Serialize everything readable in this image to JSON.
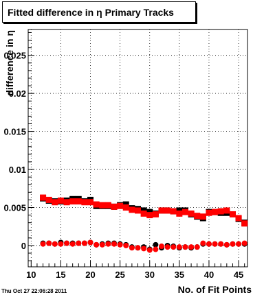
{
  "title": "Fitted difference in  η Primary Tracks",
  "timestamp": "Thu Oct 27 22:06:28 2011",
  "chart_data": {
    "type": "scatter",
    "title": "Fitted difference in  η Primary Tracks",
    "xlabel": "No. of Fit Points",
    "ylabel": "difference in η",
    "xlim": [
      9.5,
      46.5
    ],
    "ylim": [
      -0.0028,
      0.0284
    ],
    "grid": true,
    "x_ticks": [
      "10",
      "15",
      "20",
      "25",
      "30",
      "35",
      "40",
      "45"
    ],
    "x_tick_values": [
      10,
      15,
      20,
      25,
      30,
      35,
      40,
      45
    ],
    "y_ticks": [
      "0",
      "0.005",
      "0.01",
      "0.015",
      "0.02",
      "0.025"
    ],
    "y_tick_values": [
      0,
      0.005,
      0.01,
      0.015,
      0.02,
      0.025
    ],
    "x": [
      12,
      13,
      14,
      15,
      16,
      17,
      18,
      19,
      20,
      21,
      22,
      23,
      24,
      25,
      26,
      27,
      28,
      29,
      30,
      31,
      32,
      33,
      34,
      35,
      36,
      37,
      38,
      39,
      40,
      41,
      42,
      43,
      44,
      45,
      46
    ],
    "series": [
      {
        "color": "#000000",
        "marker": "square",
        "role": "mean",
        "values": [
          0.0062,
          0.0059,
          0.0058,
          0.0058,
          0.0059,
          0.0061,
          0.0061,
          0.0058,
          0.006,
          0.0052,
          0.0052,
          0.0052,
          0.0051,
          0.0053,
          0.0054,
          0.0049,
          0.0048,
          0.0046,
          0.0044,
          0.0042,
          0.0046,
          0.0046,
          0.0045,
          0.0046,
          0.0046,
          0.0041,
          0.0038,
          0.0036,
          0.0044,
          0.0044,
          0.0043,
          0.0043,
          0.0041,
          0.0035,
          0.003
        ]
      },
      {
        "color": "#000000",
        "marker": "circle",
        "role": "sigma",
        "values": [
          0.0003,
          0.0003,
          0.0002,
          0.0004,
          0.0003,
          0.0003,
          0.0003,
          0.0003,
          0.0004,
          0.0001,
          0.0002,
          0.0003,
          0.0003,
          0.0002,
          0.0001,
          -0.0002,
          -0.0003,
          -0.0002,
          -0.0005,
          0.0001,
          -0.0003,
          0.0,
          -0.0001,
          -0.0003,
          -0.0002,
          -0.0003,
          -0.0002,
          0.0002,
          0.0002,
          0.0002,
          0.0002,
          0.0001,
          0.0002,
          0.0002,
          0.0002
        ]
      },
      {
        "color": "#ff0000",
        "marker": "square",
        "role": "mean",
        "values": [
          0.0063,
          0.006,
          0.0057,
          0.0059,
          0.0057,
          0.0058,
          0.0058,
          0.0057,
          0.0057,
          0.0054,
          0.0053,
          0.0053,
          0.0051,
          0.0052,
          0.005,
          0.0047,
          0.0046,
          0.0042,
          0.004,
          0.0041,
          0.0046,
          0.0046,
          0.0045,
          0.0042,
          0.0044,
          0.0042,
          0.0039,
          0.0038,
          0.0043,
          0.0044,
          0.0045,
          0.0046,
          0.0041,
          0.0036,
          0.0029
        ]
      },
      {
        "color": "#ff0000",
        "marker": "circle",
        "role": "sigma",
        "values": [
          0.0002,
          0.0003,
          0.0002,
          0.0002,
          0.0003,
          0.0002,
          0.0003,
          0.0003,
          0.0004,
          0.0001,
          0.0001,
          0.0002,
          0.0002,
          0.0001,
          0.0,
          -0.0003,
          -0.0003,
          -0.0004,
          -0.0006,
          -0.0005,
          -0.0001,
          -0.0002,
          -0.0002,
          -0.0002,
          -0.0002,
          -0.0002,
          -0.0002,
          0.0003,
          0.0002,
          0.0002,
          0.0002,
          0.0001,
          0.0002,
          0.0002,
          0.0003
        ]
      }
    ]
  }
}
